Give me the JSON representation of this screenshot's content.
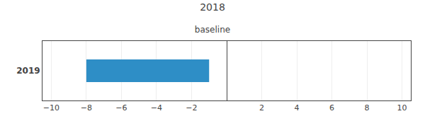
{
  "chart_data": {
    "type": "bar",
    "orientation": "horizontal",
    "title": "2018",
    "subtitle": "baseline",
    "categories": [
      "2019"
    ],
    "values": [
      7.0
    ],
    "base": [
      -8.0
    ],
    "color": "#2E8EC6",
    "xlim": [
      -10.5,
      10.5
    ],
    "xticks": [
      {
        "value": -10,
        "label": "−10"
      },
      {
        "value": -8,
        "label": "−8"
      },
      {
        "value": -6,
        "label": "−6"
      },
      {
        "value": -4,
        "label": "−4"
      },
      {
        "value": -2,
        "label": "−2"
      },
      2,
      4,
      6,
      8,
      10
    ],
    "grid": true
  }
}
